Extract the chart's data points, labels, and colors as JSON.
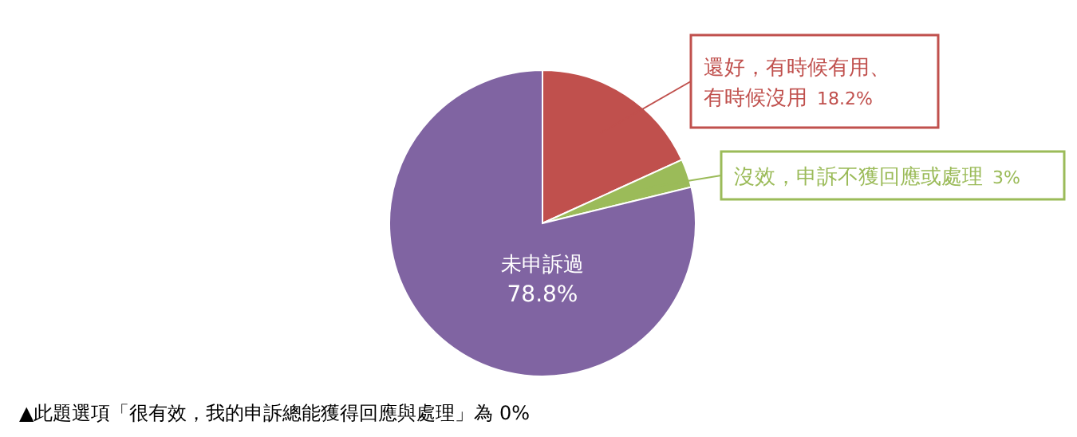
{
  "chart_data": {
    "type": "pie",
    "categories": [
      "還好，有時候有用、有時候沒用",
      "沒效，申訴不獲回應或處理",
      "未申訴過"
    ],
    "values": [
      18.2,
      3,
      78.8
    ],
    "value_labels": [
      "18.2%",
      "3%",
      "78.8%"
    ],
    "colors": [
      "#c0504d",
      "#9bbb59",
      "#8064a2"
    ],
    "annotations": [
      "▲此題選項「很有效，我的申訴總能獲得回應與處理」為 0%"
    ]
  }
}
